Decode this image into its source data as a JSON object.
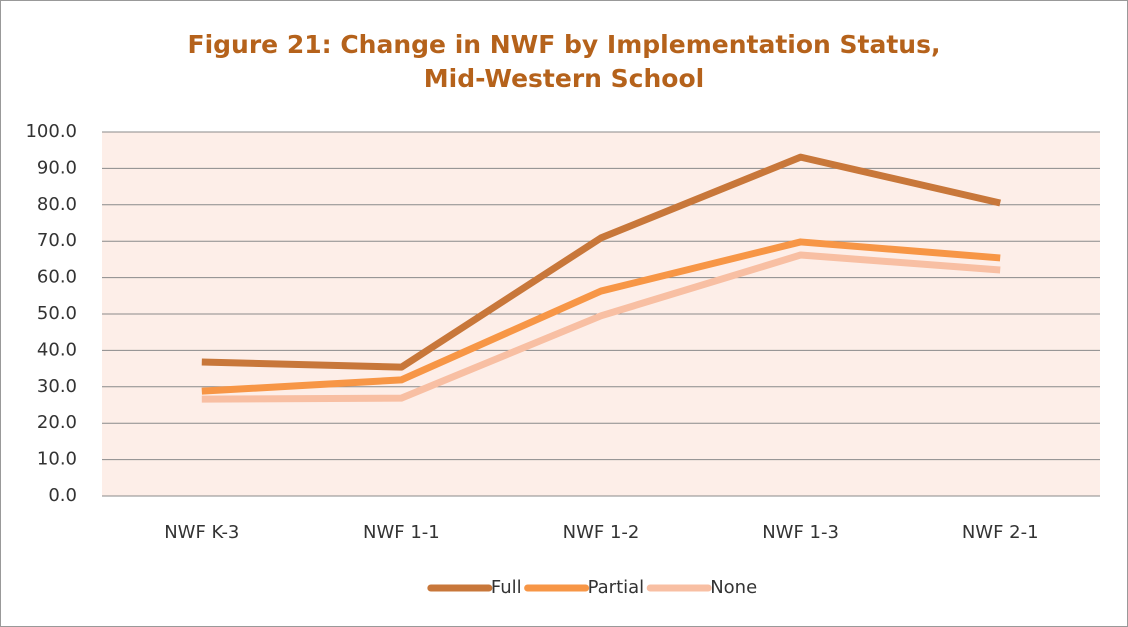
{
  "chart_data": {
    "type": "line",
    "title": "Figure 21: Change in NWF by Implementation Status, Mid-Western School",
    "categories": [
      "NWF K-3",
      "NWF 1-1",
      "NWF 1-2",
      "NWF 1-3",
      "NWF 2-1"
    ],
    "series": [
      {
        "name": "Full",
        "color": "#c8773a",
        "values": [
          36.8,
          35.4,
          70.9,
          93.1,
          80.5
        ]
      },
      {
        "name": "Partial",
        "color": "#f79646",
        "values": [
          28.8,
          31.9,
          56.3,
          69.8,
          65.4
        ]
      },
      {
        "name": "None",
        "color": "#f8bfa3",
        "values": [
          26.6,
          26.9,
          49.5,
          66.2,
          62.1
        ]
      }
    ],
    "ylim": [
      0,
      100
    ],
    "yticks": [
      {
        "value": 0,
        "label": "0.0"
      },
      {
        "value": 10,
        "label": "10.0"
      },
      {
        "value": 20,
        "label": "20.0"
      },
      {
        "value": 30,
        "label": "30.0"
      },
      {
        "value": 40,
        "label": "40.0"
      },
      {
        "value": 50,
        "label": "50.0"
      },
      {
        "value": 60,
        "label": "60.0"
      },
      {
        "value": 70,
        "label": "70.0"
      },
      {
        "value": 80,
        "label": "80.0"
      },
      {
        "value": 90,
        "label": "90.0"
      },
      {
        "value": 100,
        "label": "100.0"
      }
    ],
    "grid": true,
    "legend": "bottom",
    "plot_background": "#fdeee8"
  }
}
